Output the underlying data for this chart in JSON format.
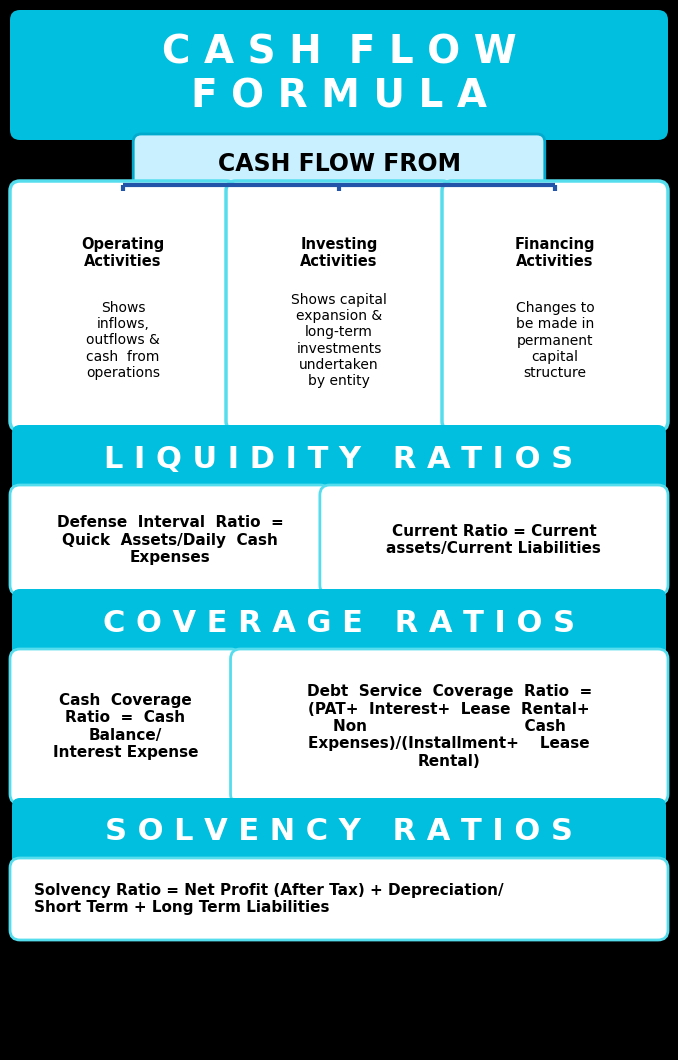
{
  "bg_color": "#000000",
  "title_text": "C A S H  F L O W\nF O R M U L A",
  "title_bg": "#00BFDF",
  "title_text_color": "#ffffff",
  "title_fontsize": 28,
  "cf_from_text": "CASH FLOW FROM",
  "cf_from_bg": "#c8f0ff",
  "cf_from_border": "#00aacc",
  "cf_from_text_color": "#000000",
  "cf_from_fontsize": 17,
  "three_titles": [
    "Operating\nActivities",
    "Investing\nActivities",
    "Financing\nActivities"
  ],
  "three_bodies": [
    "Shows\ninflows,\noutflows &\ncash  from\noperations",
    "Shows capital\nexpansion &\nlong-term\ninvestments\nundertaken\nby entity",
    "Changes to\nbe made in\npermanent\ncapital\nstructure"
  ],
  "three_bg": "#ffffff",
  "three_border": "#55ddee",
  "connector_color": "#2255aa",
  "liq_header_text": "L I Q U I D I T Y   R A T I O S",
  "liq_header_bg": "#00BFDF",
  "liq_header_color": "#ffffff",
  "liq_header_fontsize": 22,
  "liq_box1_text": "Defense  Interval  Ratio  =\nQuick  Assets/Daily  Cash\nExpenses",
  "liq_box2_text": "Current Ratio = Current\nassets/Current Liabilities",
  "liq_bg": "#ffffff",
  "liq_border": "#55ddee",
  "cov_header_text": "C O V E R A G E   R A T I O S",
  "cov_header_bg": "#00BFDF",
  "cov_header_color": "#ffffff",
  "cov_header_fontsize": 22,
  "cov_box1_text": "Cash  Coverage\nRatio  =  Cash\nBalance/\nInterest Expense",
  "cov_box2_text": "Debt  Service  Coverage  Ratio  =\n(PAT+  Interest+  Lease  Rental+\nNon                              Cash\nExpenses)/(Installment+    Lease\nRental)",
  "cov_bg": "#ffffff",
  "cov_border": "#55ddee",
  "sol_header_text": "S O L V E N C Y   R A T I O S",
  "sol_header_bg": "#00BFDF",
  "sol_header_color": "#ffffff",
  "sol_header_fontsize": 22,
  "sol_box_text_bold": "Solvency Ratio",
  "sol_box_text_normal": " = Net Profit (After Tax) + Depreciation/\nShort Term + Long Term Liabilities",
  "sol_bg": "#ffffff",
  "sol_border": "#55ddee",
  "body_fontsize": 11
}
